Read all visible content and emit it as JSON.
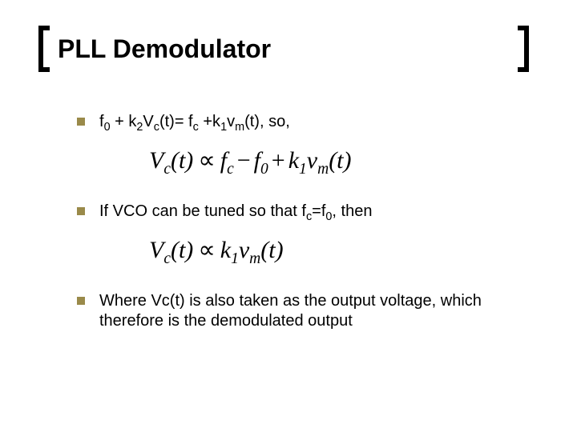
{
  "title": "PLL Demodulator",
  "bullets": {
    "b1_prefix": "f",
    "b1_sub1": "0",
    "b1_mid1": " + k",
    "b1_sub2": "2",
    "b1_mid2": "V",
    "b1_sub3": "c",
    "b1_mid3": "(t)= f",
    "b1_sub4": "c",
    "b1_mid4": " +k",
    "b1_sub5": "1",
    "b1_mid5": "v",
    "b1_sub6": "m",
    "b1_suffix": "(t), so,",
    "b2_prefix": "If VCO can be tuned so that f",
    "b2_sub1": "c",
    "b2_mid1": "=f",
    "b2_sub2": "0",
    "b2_suffix": ", then",
    "b3": "Where Vc(t) is also taken as the output voltage, which therefore is the demodulated output"
  },
  "equations": {
    "eq1": {
      "lhs_V": "V",
      "lhs_c": "c",
      "lhs_t": "(t)",
      "prop": "∝",
      "fc_f": "f",
      "fc_c": "c",
      "minus": "−",
      "f0_f": "f",
      "f0_0": "0",
      "plus": "+",
      "k1_k": "k",
      "k1_1": "1",
      "vm_v": "v",
      "vm_m": "m",
      "vm_t": "(t)"
    },
    "eq2": {
      "lhs_V": "V",
      "lhs_c": "c",
      "lhs_t": "(t)",
      "prop": "∝",
      "k1_k": "k",
      "k1_1": "1",
      "vm_v": "v",
      "vm_m": "m",
      "vm_t": "(t)"
    }
  },
  "style": {
    "title_fontsize": 32,
    "body_fontsize": 20,
    "equation_fontsize": 30,
    "bullet_color": "#9a8a4a",
    "text_color": "#000000",
    "background": "#ffffff",
    "bracket_thickness": 6
  }
}
